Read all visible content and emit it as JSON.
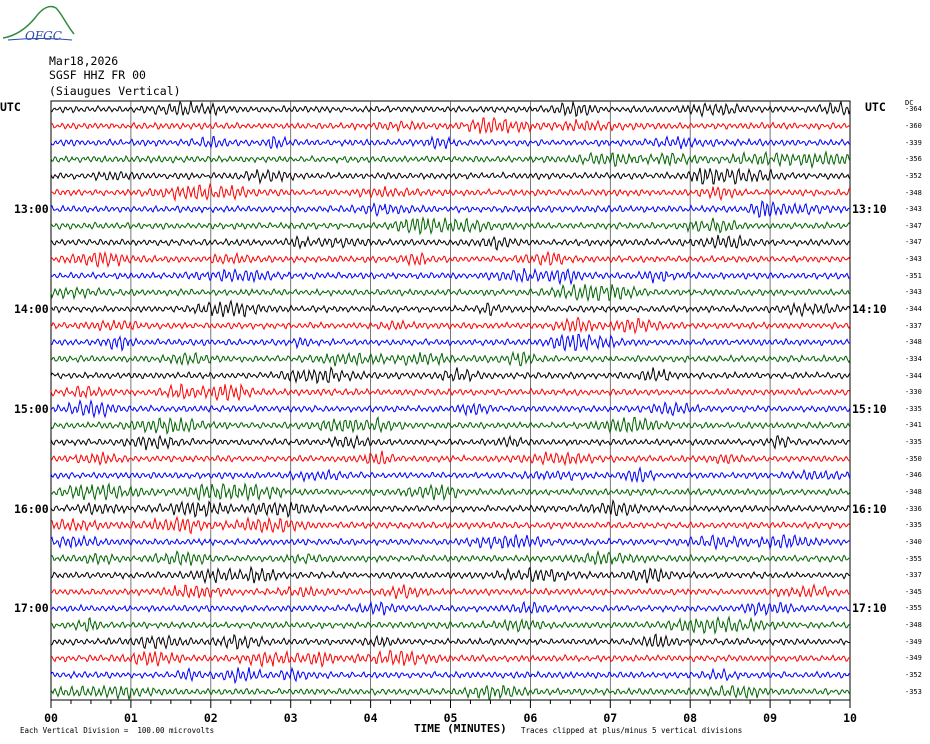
{
  "logo": {
    "text": "OFGC",
    "colors": {
      "mountain": "#2e8b3a",
      "text": "#2a4aa8"
    }
  },
  "header": {
    "date": "Mar18,2026",
    "station": "SGSF HHZ FR 00",
    "location": "(Siaugues Vertical)"
  },
  "chart_data": {
    "type": "line",
    "title": "",
    "x": {
      "label": "TIME (MINUTES)",
      "ticks": [
        "00",
        "01",
        "02",
        "03",
        "04",
        "05",
        "06",
        "07",
        "08",
        "09",
        "10"
      ],
      "range": [
        0,
        10
      ]
    },
    "left_axis": {
      "title": "UTC",
      "labels": [
        "13:00",
        "14:00",
        "15:00",
        "16:00",
        "17:00"
      ]
    },
    "right_axis": {
      "title": "UTC",
      "dc_header": "DC",
      "labels": [
        "13:10",
        "14:10",
        "15:10",
        "16:10",
        "17:10"
      ]
    },
    "trace_colors": [
      "#000000",
      "#ff0000",
      "#0000ff",
      "#006400"
    ],
    "dc_offsets": [
      "-364",
      "-360",
      "-339",
      "-356",
      "-352",
      "-348",
      "-343",
      "-347",
      "-347",
      "-343",
      "-351",
      "-343",
      "-344",
      "-337",
      "-348",
      "-334",
      "-344",
      "-330",
      "-335",
      "-341",
      "-335",
      "-350",
      "-346",
      "-348",
      "-336",
      "-335",
      "-340",
      "-355",
      "-337",
      "-345",
      "-355",
      "-348",
      "-349",
      "-349",
      "-352",
      "-353"
    ],
    "grid": true
  },
  "footer": {
    "scale": "Each Vertical Division =  100.00 microvolts",
    "clip": "Traces clipped at plus/minus 5 vertical divisions"
  }
}
